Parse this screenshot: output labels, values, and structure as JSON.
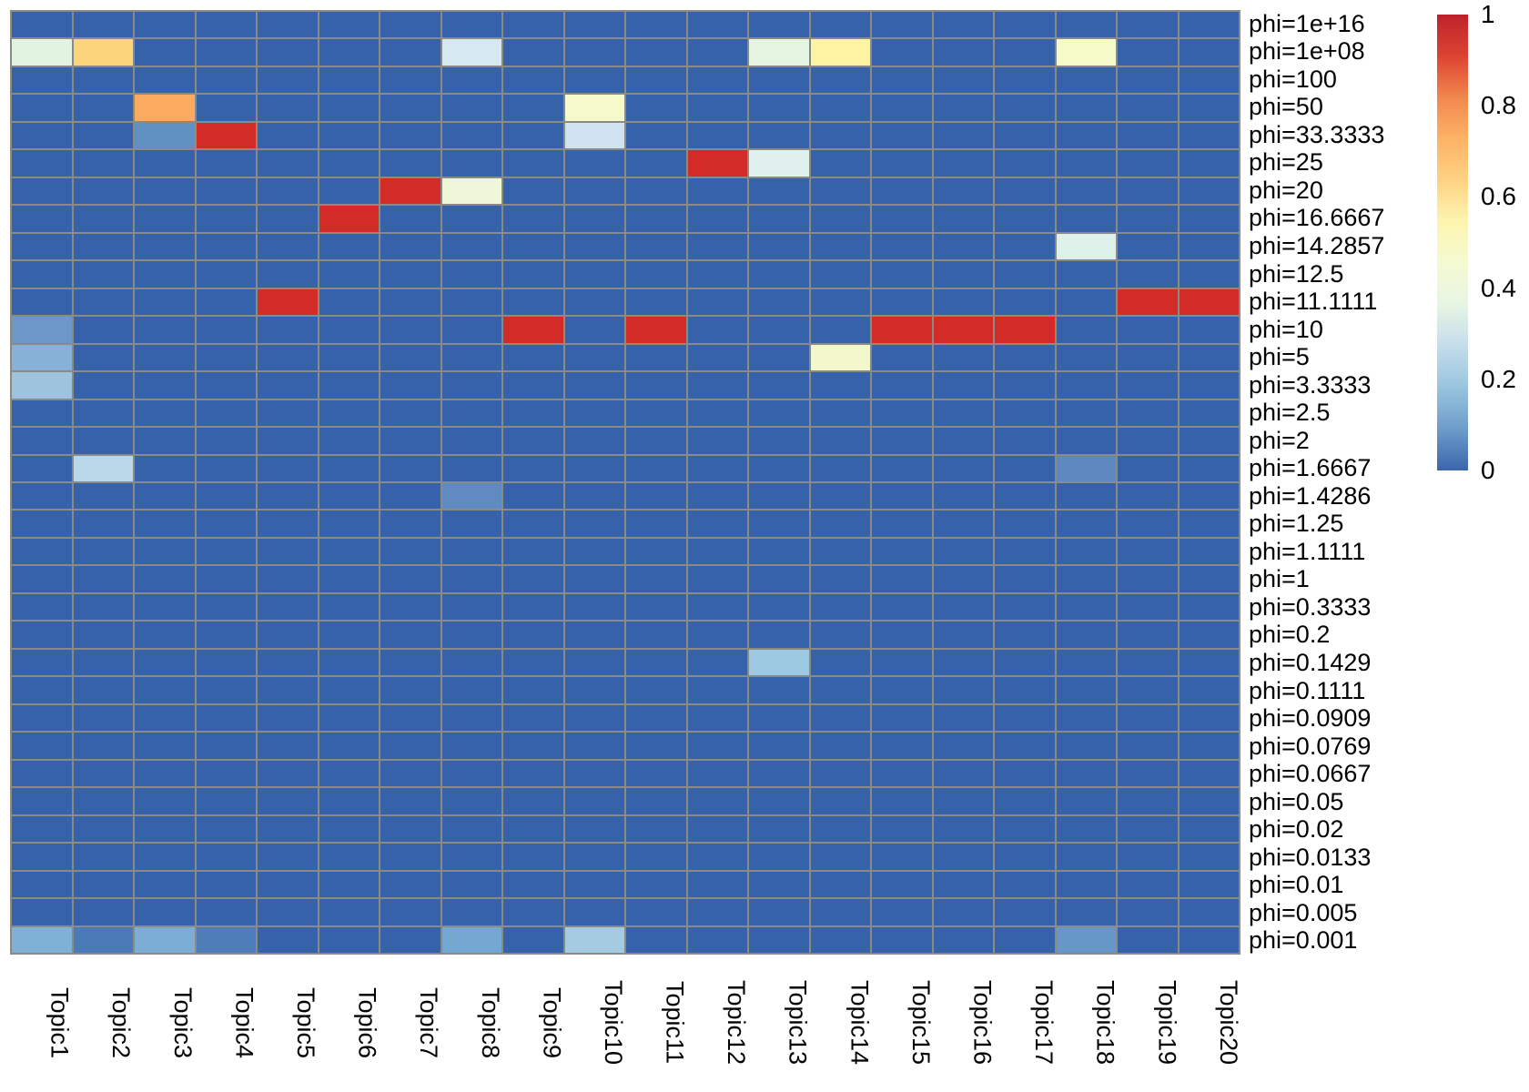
{
  "figure": {
    "background_color": "#ffffff",
    "grid_line_color": "#8b8b85"
  },
  "chart_data": {
    "type": "heatmap",
    "title": "",
    "xlabel": "",
    "ylabel": "",
    "value_range": [
      0,
      1
    ],
    "default_value": 0,
    "default_color": "#3662a9",
    "row_labels": [
      "phi=1e+16",
      "phi=1e+08",
      "phi=100",
      "phi=50",
      "phi=33.3333",
      "phi=25",
      "phi=20",
      "phi=16.6667",
      "phi=14.2857",
      "phi=12.5",
      "phi=11.1111",
      "phi=10",
      "phi=5",
      "phi=3.3333",
      "phi=2.5",
      "phi=2",
      "phi=1.6667",
      "phi=1.4286",
      "phi=1.25",
      "phi=1.1111",
      "phi=1",
      "phi=0.3333",
      "phi=0.2",
      "phi=0.1429",
      "phi=0.1111",
      "phi=0.0909",
      "phi=0.0769",
      "phi=0.0667",
      "phi=0.05",
      "phi=0.02",
      "phi=0.0133",
      "phi=0.01",
      "phi=0.005",
      "phi=0.001"
    ],
    "col_labels": [
      "Topic1",
      "Topic2",
      "Topic3",
      "Topic4",
      "Topic5",
      "Topic6",
      "Topic7",
      "Topic8",
      "Topic9",
      "Topic10",
      "Topic11",
      "Topic12",
      "Topic13",
      "Topic14",
      "Topic15",
      "Topic16",
      "Topic17",
      "Topic18",
      "Topic19",
      "Topic20"
    ],
    "cells": [
      {
        "row": "phi=1e+08",
        "col": "Topic1",
        "value": 0.4,
        "color": "#e3f3e2"
      },
      {
        "row": "phi=1e+08",
        "col": "Topic2",
        "value": 0.65,
        "color": "#fcd47c"
      },
      {
        "row": "phi=1e+08",
        "col": "Topic8",
        "value": 0.33,
        "color": "#d6e9f1"
      },
      {
        "row": "phi=1e+08",
        "col": "Topic13",
        "value": 0.4,
        "color": "#e4f4e0"
      },
      {
        "row": "phi=1e+08",
        "col": "Topic14",
        "value": 0.55,
        "color": "#fdf3a3"
      },
      {
        "row": "phi=1e+08",
        "col": "Topic18",
        "value": 0.46,
        "color": "#f5fac8"
      },
      {
        "row": "phi=50",
        "col": "Topic3",
        "value": 0.73,
        "color": "#fbaa60"
      },
      {
        "row": "phi=50",
        "col": "Topic10",
        "value": 0.46,
        "color": "#f6facb"
      },
      {
        "row": "phi=33.3333",
        "col": "Topic3",
        "value": 0.12,
        "color": "#6190c2"
      },
      {
        "row": "phi=33.3333",
        "col": "Topic4",
        "value": 0.96,
        "color": "#d32b28"
      },
      {
        "row": "phi=33.3333",
        "col": "Topic10",
        "value": 0.3,
        "color": "#cfe4f0"
      },
      {
        "row": "phi=25",
        "col": "Topic12",
        "value": 0.96,
        "color": "#d32b28"
      },
      {
        "row": "phi=25",
        "col": "Topic13",
        "value": 0.37,
        "color": "#e0f0ec"
      },
      {
        "row": "phi=20",
        "col": "Topic7",
        "value": 0.96,
        "color": "#d32b28"
      },
      {
        "row": "phi=20",
        "col": "Topic8",
        "value": 0.44,
        "color": "#eef8d8"
      },
      {
        "row": "phi=16.6667",
        "col": "Topic6",
        "value": 0.96,
        "color": "#d32b28"
      },
      {
        "row": "phi=14.2857",
        "col": "Topic18",
        "value": 0.37,
        "color": "#ddf0ea"
      },
      {
        "row": "phi=11.1111",
        "col": "Topic5",
        "value": 0.96,
        "color": "#d32b28"
      },
      {
        "row": "phi=11.1111",
        "col": "Topic19",
        "value": 0.96,
        "color": "#d32b28"
      },
      {
        "row": "phi=11.1111",
        "col": "Topic20",
        "value": 0.96,
        "color": "#d32b28"
      },
      {
        "row": "phi=10",
        "col": "Topic1",
        "value": 0.13,
        "color": "#6b97c9"
      },
      {
        "row": "phi=10",
        "col": "Topic9",
        "value": 0.96,
        "color": "#d32b28"
      },
      {
        "row": "phi=10",
        "col": "Topic11",
        "value": 0.96,
        "color": "#d32b28"
      },
      {
        "row": "phi=10",
        "col": "Topic15",
        "value": 0.96,
        "color": "#d32b28"
      },
      {
        "row": "phi=10",
        "col": "Topic16",
        "value": 0.96,
        "color": "#d32b28"
      },
      {
        "row": "phi=10",
        "col": "Topic17",
        "value": 0.96,
        "color": "#d32b28"
      },
      {
        "row": "phi=5",
        "col": "Topic1",
        "value": 0.16,
        "color": "#87b1d6"
      },
      {
        "row": "phi=5",
        "col": "Topic14",
        "value": 0.46,
        "color": "#f2f8cb"
      },
      {
        "row": "phi=3.3333",
        "col": "Topic1",
        "value": 0.2,
        "color": "#9dc3df"
      },
      {
        "row": "phi=1.6667",
        "col": "Topic2",
        "value": 0.26,
        "color": "#b9d8ea"
      },
      {
        "row": "phi=1.6667",
        "col": "Topic18",
        "value": 0.09,
        "color": "#5d89c0"
      },
      {
        "row": "phi=1.4286",
        "col": "Topic8",
        "value": 0.1,
        "color": "#5f8bc1"
      },
      {
        "row": "phi=0.1429",
        "col": "Topic13",
        "value": 0.21,
        "color": "#9ec9e2"
      },
      {
        "row": "phi=0.001",
        "col": "Topic1",
        "value": 0.15,
        "color": "#7fb0d6"
      },
      {
        "row": "phi=0.001",
        "col": "Topic2",
        "value": 0.05,
        "color": "#4b7ab8"
      },
      {
        "row": "phi=0.001",
        "col": "Topic3",
        "value": 0.15,
        "color": "#7cadd4"
      },
      {
        "row": "phi=0.001",
        "col": "Topic4",
        "value": 0.05,
        "color": "#4e7dba"
      },
      {
        "row": "phi=0.001",
        "col": "Topic8",
        "value": 0.14,
        "color": "#74a7d2"
      },
      {
        "row": "phi=0.001",
        "col": "Topic10",
        "value": 0.21,
        "color": "#a4cbe2"
      },
      {
        "row": "phi=0.001",
        "col": "Topic18",
        "value": 0.12,
        "color": "#6697c8"
      }
    ],
    "colorbar": {
      "min": 0,
      "max": 1,
      "ticks": [
        {
          "label": "1",
          "value": 1
        },
        {
          "label": "0.8",
          "value": 0.8
        },
        {
          "label": "0.6",
          "value": 0.6
        },
        {
          "label": "0.4",
          "value": 0.4
        },
        {
          "label": "0.2",
          "value": 0.2
        },
        {
          "label": "0",
          "value": 0
        }
      ],
      "gradient_top_to_bottom": [
        "#bf212b",
        "#dc4331",
        "#f1874e",
        "#fdb365",
        "#fed283",
        "#fdf5b0",
        "#f5fad1",
        "#e7f5e4",
        "#c3ddeb",
        "#9ac4de",
        "#6d9cca",
        "#3b66ac"
      ]
    },
    "legend_position": "right",
    "grid_on": true
  }
}
